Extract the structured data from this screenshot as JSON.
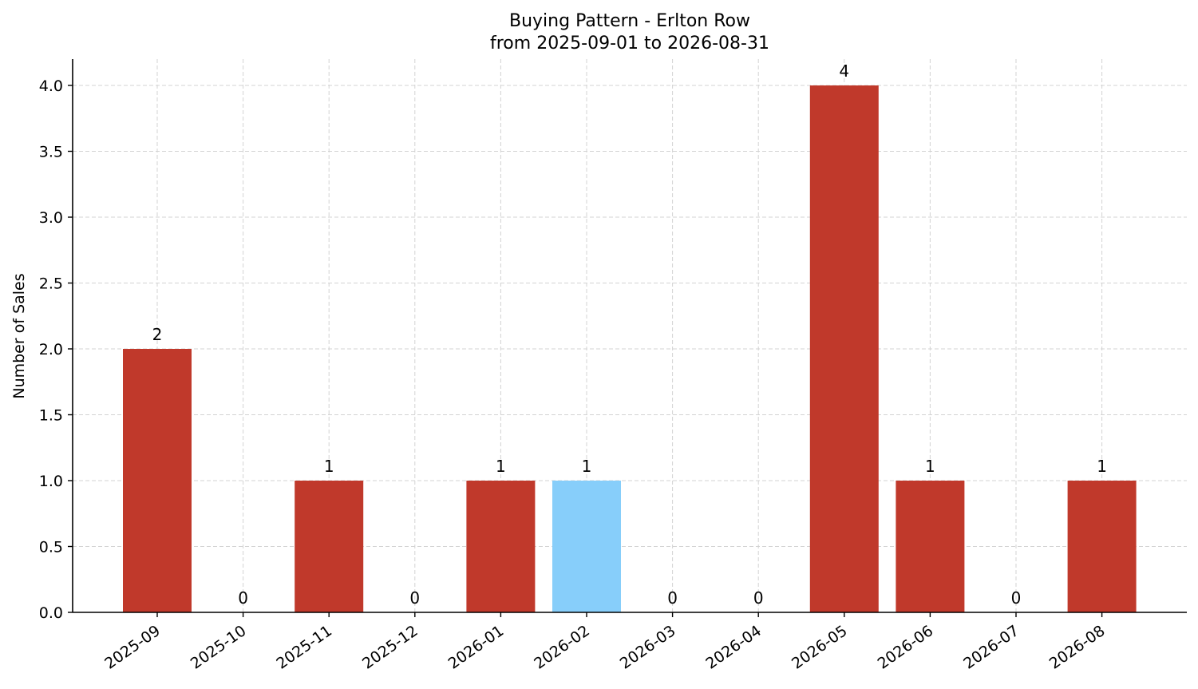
{
  "chart_data": {
    "type": "bar",
    "title": "Buying Pattern - Erlton Row",
    "subtitle": "from 2025-09-01 to 2026-08-31",
    "xlabel": "",
    "ylabel": "Number of Sales",
    "ylim": [
      0,
      4.2
    ],
    "yticks": [
      "0.0",
      "0.5",
      "1.0",
      "1.5",
      "2.0",
      "2.5",
      "3.0",
      "3.5",
      "4.0"
    ],
    "grid": true,
    "categories": [
      "2025-09",
      "2025-10",
      "2025-11",
      "2025-12",
      "2026-01",
      "2026-02",
      "2026-03",
      "2026-04",
      "2026-05",
      "2026-06",
      "2026-07",
      "2026-08"
    ],
    "values": [
      2,
      0,
      1,
      0,
      1,
      1,
      0,
      0,
      4,
      1,
      0,
      1
    ],
    "value_labels": [
      "2",
      "0",
      "1",
      "0",
      "1",
      "1",
      "0",
      "0",
      "4",
      "1",
      "0",
      "1"
    ],
    "bar_colors": [
      "#c0392b",
      "#c0392b",
      "#c0392b",
      "#c0392b",
      "#c0392b",
      "#87cefa",
      "#c0392b",
      "#c0392b",
      "#c0392b",
      "#c0392b",
      "#c0392b",
      "#c0392b"
    ],
    "colors": {
      "bar": "#c0392b",
      "highlight": "#87cefa",
      "grid": "#d3d3d3",
      "axis": "#000000"
    }
  }
}
